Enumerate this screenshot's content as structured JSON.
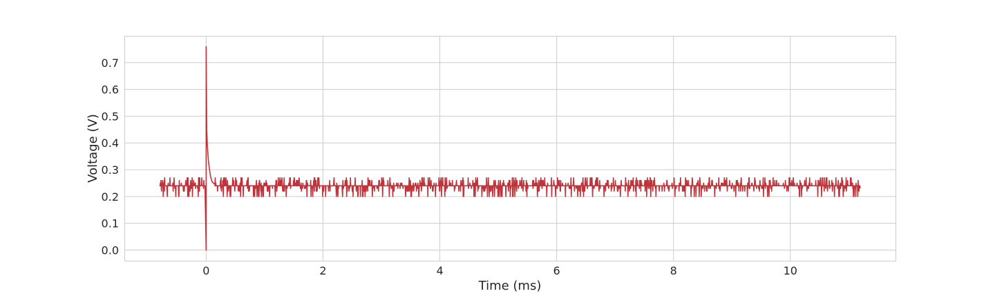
{
  "chart_data": {
    "type": "line",
    "title": "",
    "xlabel": "Time (ms)",
    "ylabel": "Voltage (V)",
    "xlim": [
      -1.4,
      11.8
    ],
    "ylim": [
      -0.04,
      0.8
    ],
    "xticks": [
      0,
      2,
      4,
      6,
      8,
      10
    ],
    "yticks": [
      0.0,
      0.1,
      0.2,
      0.3,
      0.4,
      0.5,
      0.6,
      0.7
    ],
    "xtick_labels": [
      "0",
      "2",
      "4",
      "6",
      "8",
      "10"
    ],
    "ytick_labels": [
      "0.0",
      "0.1",
      "0.2",
      "0.3",
      "0.4",
      "0.5",
      "0.6",
      "0.7"
    ],
    "grid": true,
    "legend": "none",
    "colors": {
      "line": "#c0333a",
      "grid": "#cccccc",
      "frame": "#cccccc",
      "text": "#262626"
    },
    "series": [
      {
        "x": [
          -0.8,
          -0.75,
          -0.7,
          -0.6,
          -0.5,
          -0.4,
          -0.3,
          -0.2,
          -0.1,
          -0.02,
          0.0,
          0.0,
          0.01,
          0.02,
          0.04,
          0.07,
          0.1,
          0.15,
          0.3,
          0.6,
          1.0,
          1.5,
          2.0,
          2.5,
          3.0,
          3.5,
          4.0,
          4.5,
          5.0,
          5.5,
          6.0,
          6.5,
          7.0,
          7.5,
          8.0,
          8.5,
          9.0,
          9.5,
          10.0,
          10.5,
          11.0,
          11.2
        ],
        "y": [
          0.24,
          0.26,
          0.23,
          0.25,
          0.24,
          0.23,
          0.25,
          0.24,
          0.25,
          0.24,
          0.0,
          0.76,
          0.45,
          0.39,
          0.33,
          0.28,
          0.255,
          0.245,
          0.24,
          0.24,
          0.24,
          0.24,
          0.24,
          0.24,
          0.24,
          0.24,
          0.24,
          0.24,
          0.24,
          0.24,
          0.24,
          0.24,
          0.24,
          0.24,
          0.24,
          0.24,
          0.24,
          0.24,
          0.24,
          0.24,
          0.24,
          0.24
        ],
        "noise": {
          "baseline": 0.24,
          "min": 0.2,
          "max": 0.27,
          "x_start": -0.8,
          "x_end": 11.2,
          "step": 0.005
        }
      }
    ]
  }
}
